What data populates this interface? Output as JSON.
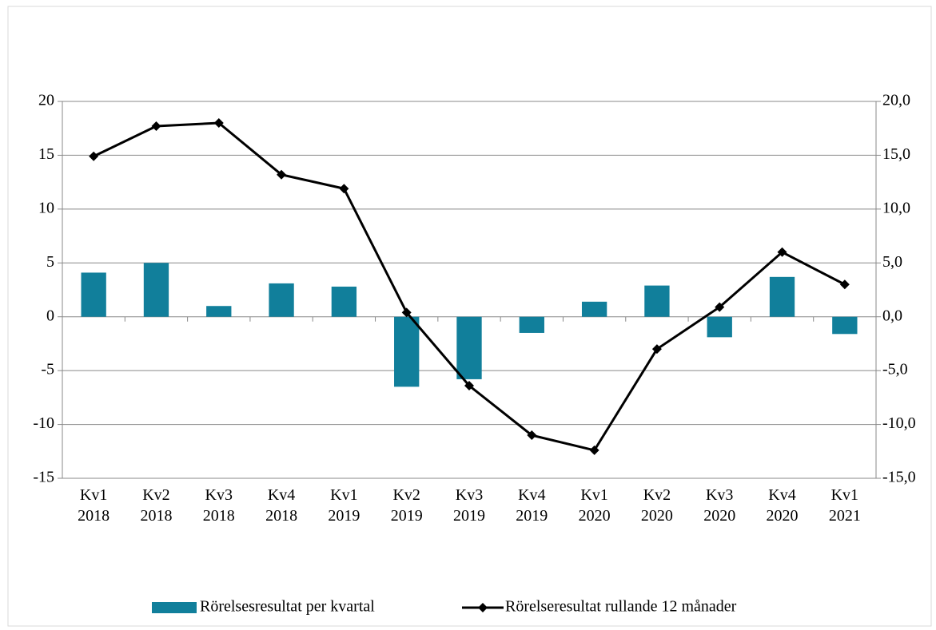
{
  "chart_data": {
    "type": "bar",
    "categories": [
      "Kv1 2018",
      "Kv2 2018",
      "Kv3 2018",
      "Kv4 2018",
      "Kv1 2019",
      "Kv2 2019",
      "Kv3 2019",
      "Kv4 2019",
      "Kv1 2020",
      "Kv2 2020",
      "Kv3 2020",
      "Kv4 2020",
      "Kv1 2021"
    ],
    "series": [
      {
        "name": "Rörelsesresultat per kvartal",
        "type": "bar",
        "color": "#117f9b",
        "values": [
          4.1,
          5.0,
          1.0,
          3.1,
          2.8,
          -6.5,
          -5.8,
          -1.5,
          1.4,
          2.9,
          -1.9,
          3.7,
          -1.6
        ]
      },
      {
        "name": "Rörelseresultat rullande 12 månader",
        "type": "line",
        "color": "#000000",
        "axis": "y2",
        "values": [
          14.9,
          17.7,
          18.0,
          13.2,
          11.9,
          0.4,
          -6.4,
          -11.0,
          -12.4,
          -3.0,
          0.9,
          6.0,
          3.0
        ]
      }
    ],
    "ylim": [
      -15,
      20
    ],
    "yticks": [
      -15,
      -10,
      -5,
      0,
      5,
      10,
      15,
      20
    ],
    "y2lim": [
      -15,
      20
    ],
    "y2ticks": [
      {
        "value": -15,
        "label": "-15,0"
      },
      {
        "value": -10,
        "label": "-10,0"
      },
      {
        "value": -5,
        "label": "-5,0"
      },
      {
        "value": 0,
        "label": "0,0"
      },
      {
        "value": 5,
        "label": "5,0"
      },
      {
        "value": 10,
        "label": "10,0"
      },
      {
        "value": 15,
        "label": "15,0"
      },
      {
        "value": 20,
        "label": "20,0"
      }
    ],
    "grid": true
  }
}
